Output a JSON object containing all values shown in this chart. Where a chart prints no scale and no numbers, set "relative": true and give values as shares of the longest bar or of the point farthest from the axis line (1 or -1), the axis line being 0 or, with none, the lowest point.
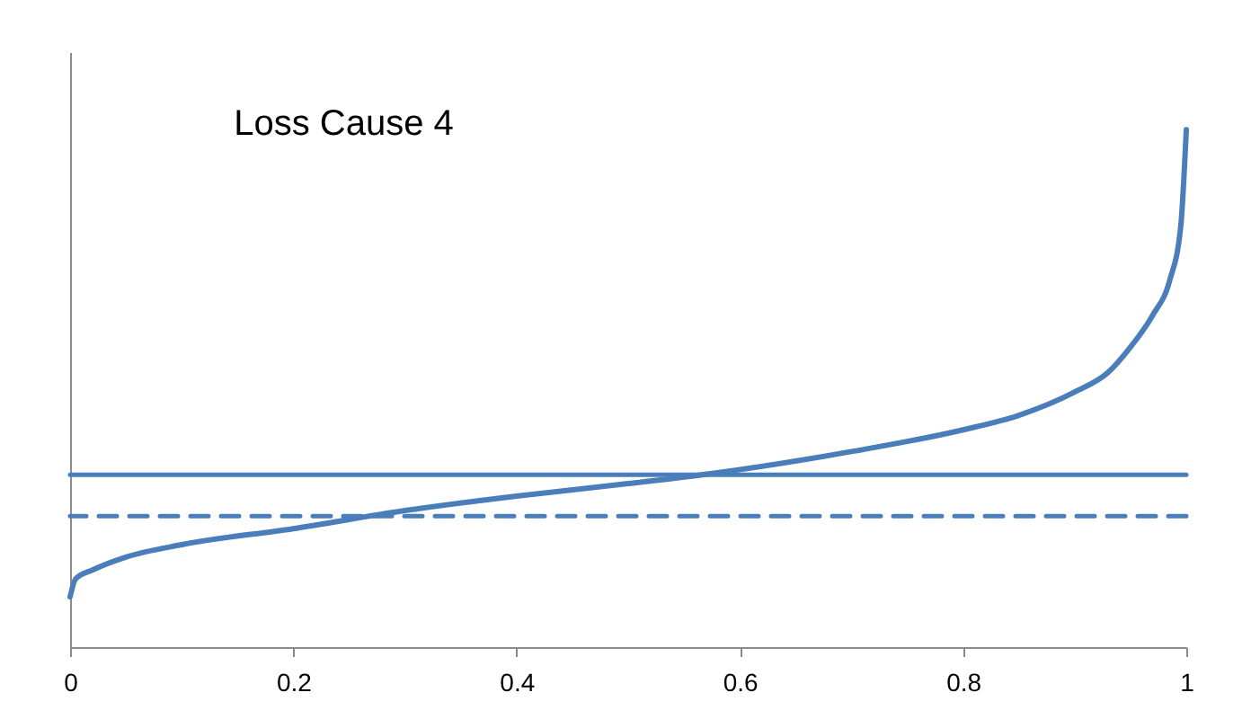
{
  "chart_data": {
    "type": "line",
    "title": "Loss Cause 4",
    "relative": true,
    "tick_labels": "x",
    "xlim": [
      0,
      1
    ],
    "xticks": [
      0,
      0.2,
      0.4,
      0.6,
      0.8,
      1
    ],
    "x": [
      0,
      0.005,
      0.02,
      0.05,
      0.1,
      0.2,
      0.3,
      0.4,
      0.5,
      0.58,
      0.7,
      0.8,
      0.85,
      0.9,
      0.93,
      0.95,
      0.97,
      0.985,
      0.995,
      1
    ],
    "series": [
      {
        "color": "#4a7ebb",
        "values": [
          0.097,
          0.132,
          0.149,
          0.174,
          0.198,
          0.229,
          0.264,
          0.292,
          0.316,
          0.337,
          0.378,
          0.42,
          0.448,
          0.493,
          0.531,
          0.58,
          0.642,
          0.708,
          0.813,
          1
        ]
      }
    ],
    "ref_lines": [
      {
        "axis": "y",
        "value": 0.333,
        "color": "#4a7ebb",
        "line_style": "solid"
      },
      {
        "axis": "y",
        "value": 0.253,
        "color": "#4a7ebb",
        "line_style": "dashed"
      }
    ],
    "grid": false,
    "marker": "none",
    "line_style": "solid"
  }
}
